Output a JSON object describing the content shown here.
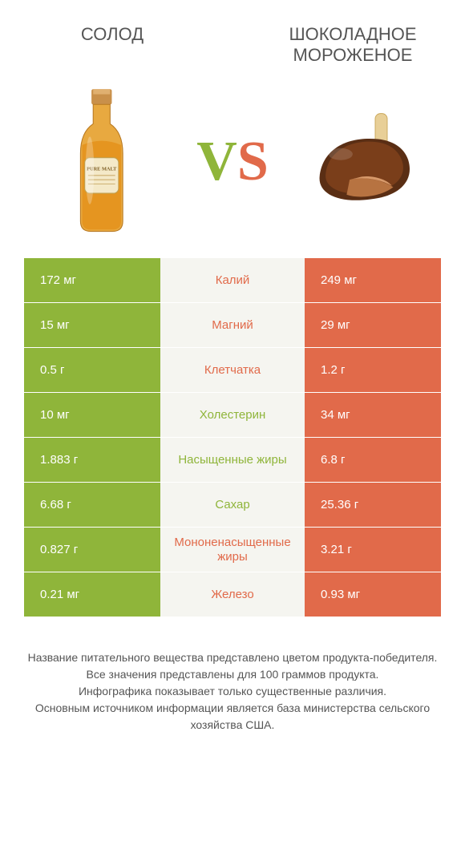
{
  "header": {
    "left_title": "СОЛОД",
    "right_title": "ШОКОЛАДНОЕ МОРОЖЕНОЕ",
    "vs_v": "V",
    "vs_s": "S"
  },
  "colors": {
    "left": "#8fb53a",
    "right": "#e16a4a",
    "mid_bg": "#f5f5f0",
    "text": "#555555"
  },
  "rows": [
    {
      "name": "Калий",
      "left": "172 мг",
      "right": "249 мг",
      "winner": "right"
    },
    {
      "name": "Магний",
      "left": "15 мг",
      "right": "29 мг",
      "winner": "right"
    },
    {
      "name": "Клетчатка",
      "left": "0.5 г",
      "right": "1.2 г",
      "winner": "right"
    },
    {
      "name": "Холестерин",
      "left": "10 мг",
      "right": "34 мг",
      "winner": "left"
    },
    {
      "name": "Насыщенные жиры",
      "left": "1.883 г",
      "right": "6.8 г",
      "winner": "left"
    },
    {
      "name": "Сахар",
      "left": "6.68 г",
      "right": "25.36 г",
      "winner": "left"
    },
    {
      "name": "Мононенасыщенные жиры",
      "left": "0.827 г",
      "right": "3.21 г",
      "winner": "right"
    },
    {
      "name": "Железо",
      "left": "0.21 мг",
      "right": "0.93 мг",
      "winner": "right"
    }
  ],
  "footnote": {
    "l1": "Название питательного вещества представлено цветом продукта-победителя.",
    "l2": "Все значения представлены для 100 граммов продукта.",
    "l3": "Инфографика показывает только существенные различия.",
    "l4": "Основным источником информации является база министерства сельского хозяйства США."
  }
}
